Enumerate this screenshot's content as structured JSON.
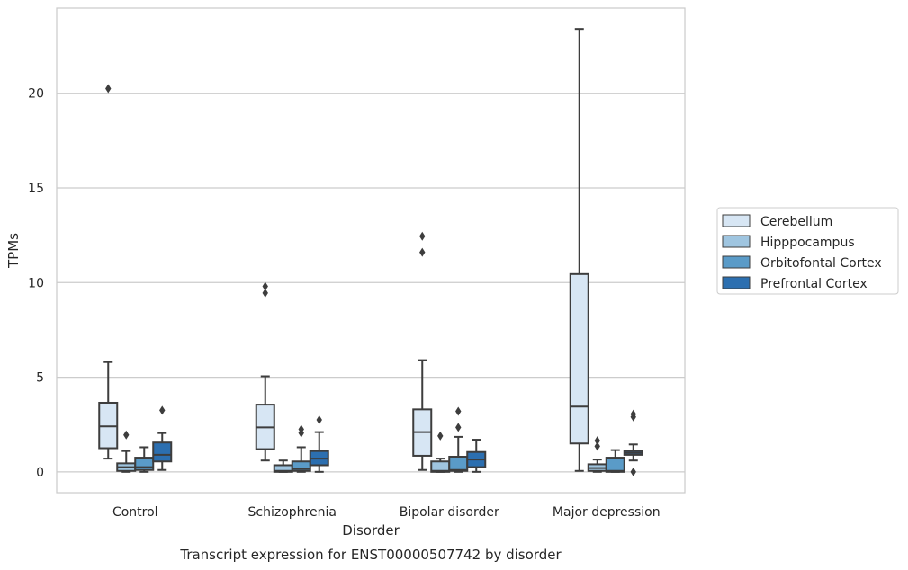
{
  "chart_data": {
    "type": "box",
    "title": "",
    "xlabel": "Disorder",
    "ylabel": "TPMs",
    "caption": "Transcript expression for ENST00000507742 by disorder",
    "categories": [
      "Control",
      "Schizophrenia",
      "Bipolar disorder",
      "Major depression"
    ],
    "ylim": [
      -1.1,
      24.5
    ],
    "yticks": [
      0,
      5,
      10,
      15,
      20
    ],
    "grid": "horizontal",
    "legend_position": "right",
    "series": [
      {
        "name": "Cerebellum",
        "color": "#d7e6f4",
        "boxes": [
          {
            "whislo": 0.7,
            "q1": 1.25,
            "med": 2.4,
            "q3": 3.65,
            "whishi": 5.8,
            "fliers": [
              20.25
            ]
          },
          {
            "whislo": 0.6,
            "q1": 1.2,
            "med": 2.35,
            "q3": 3.55,
            "whishi": 5.05,
            "fliers": [
              9.45,
              9.8
            ]
          },
          {
            "whislo": 0.1,
            "q1": 0.85,
            "med": 2.1,
            "q3": 3.3,
            "whishi": 5.9,
            "fliers": [
              11.6,
              12.45
            ]
          },
          {
            "whislo": 0.05,
            "q1": 1.5,
            "med": 3.45,
            "q3": 10.45,
            "whishi": 23.4,
            "fliers": []
          }
        ]
      },
      {
        "name": "Hipppocampus",
        "color": "#9fc5e0",
        "boxes": [
          {
            "whislo": 0.0,
            "q1": 0.05,
            "med": 0.25,
            "q3": 0.45,
            "whishi": 1.1,
            "fliers": [
              1.95
            ]
          },
          {
            "whislo": 0.0,
            "q1": 0.0,
            "med": 0.05,
            "q3": 0.35,
            "whishi": 0.6,
            "fliers": []
          },
          {
            "whislo": 0.0,
            "q1": 0.0,
            "med": 0.05,
            "q3": 0.55,
            "whishi": 0.7,
            "fliers": [
              1.9
            ]
          },
          {
            "whislo": 0.0,
            "q1": 0.05,
            "med": 0.2,
            "q3": 0.4,
            "whishi": 0.65,
            "fliers": [
              1.35,
              1.65
            ]
          }
        ]
      },
      {
        "name": "Orbitofontal Cortex",
        "color": "#5a9bc8",
        "boxes": [
          {
            "whislo": 0.0,
            "q1": 0.1,
            "med": 0.25,
            "q3": 0.75,
            "whishi": 1.3,
            "fliers": []
          },
          {
            "whislo": 0.0,
            "q1": 0.05,
            "med": 0.15,
            "q3": 0.55,
            "whishi": 1.3,
            "fliers": [
              2.05,
              2.25
            ]
          },
          {
            "whislo": 0.0,
            "q1": 0.05,
            "med": 0.1,
            "q3": 0.8,
            "whishi": 1.85,
            "fliers": [
              2.35,
              3.2
            ]
          },
          {
            "whislo": 0.0,
            "q1": 0.0,
            "med": 0.05,
            "q3": 0.75,
            "whishi": 1.15,
            "fliers": []
          }
        ]
      },
      {
        "name": "Prefrontal Cortex",
        "color": "#2c6fb0",
        "boxes": [
          {
            "whislo": 0.1,
            "q1": 0.55,
            "med": 0.9,
            "q3": 1.55,
            "whishi": 2.05,
            "fliers": [
              3.25
            ]
          },
          {
            "whislo": 0.0,
            "q1": 0.35,
            "med": 0.7,
            "q3": 1.1,
            "whishi": 2.1,
            "fliers": [
              2.75
            ]
          },
          {
            "whislo": 0.0,
            "q1": 0.25,
            "med": 0.65,
            "q3": 1.05,
            "whishi": 1.7,
            "fliers": []
          },
          {
            "whislo": 0.6,
            "q1": 0.9,
            "med": 1.0,
            "q3": 1.1,
            "whishi": 1.45,
            "fliers": [
              0.0,
              2.9,
              3.05
            ]
          }
        ]
      }
    ]
  }
}
